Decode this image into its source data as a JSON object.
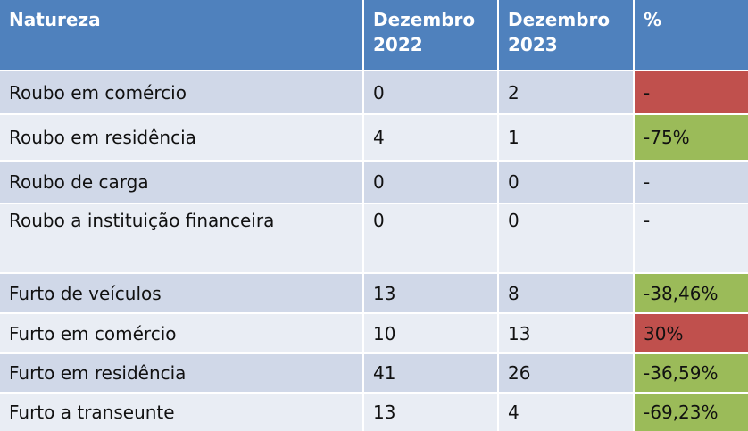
{
  "table": {
    "headers": [
      "Natureza",
      "Dezembro 2022",
      "Dezembro 2023",
      "%"
    ],
    "rows": [
      {
        "natureza": "Roubo em comércio",
        "dez2022": "0",
        "dez2023": "2",
        "pct": "-",
        "status": "increase",
        "status_color": "#c0504d"
      },
      {
        "natureza": "Roubo em residência",
        "dez2022": "4",
        "dez2023": "1",
        "pct": "-75%",
        "status": "decrease",
        "status_color": "#9bbb59"
      },
      {
        "natureza": "Roubo de carga",
        "dez2022": "0",
        "dez2023": "0",
        "pct": "-",
        "status": "none",
        "status_color": ""
      },
      {
        "natureza": "Roubo a instituição financeira",
        "dez2022": "0",
        "dez2023": "0",
        "pct": "-",
        "status": "none",
        "status_color": ""
      },
      {
        "natureza": "Furto de veículos",
        "dez2022": "13",
        "dez2023": "8",
        "pct": "-38,46%",
        "status": "decrease",
        "status_color": "#9bbb59"
      },
      {
        "natureza": "Furto em comércio",
        "dez2022": "10",
        "dez2023": "13",
        "pct": "30%",
        "status": "increase",
        "status_color": "#c0504d"
      },
      {
        "natureza": "Furto em residência",
        "dez2022": "41",
        "dez2023": "26",
        "pct": "-36,59%",
        "status": "decrease",
        "status_color": "#9bbb59"
      },
      {
        "natureza": "Furto a transeunte",
        "dez2022": "13",
        "dez2023": "4",
        "pct": "-69,23%",
        "status": "decrease",
        "status_color": "#9bbb59"
      }
    ]
  },
  "colors": {
    "header_bg": "#4f81bd",
    "row_band_dark": "#d0d8e8",
    "row_band_light": "#e9edf4",
    "increase": "#c0504d",
    "decrease": "#9bbb59"
  }
}
